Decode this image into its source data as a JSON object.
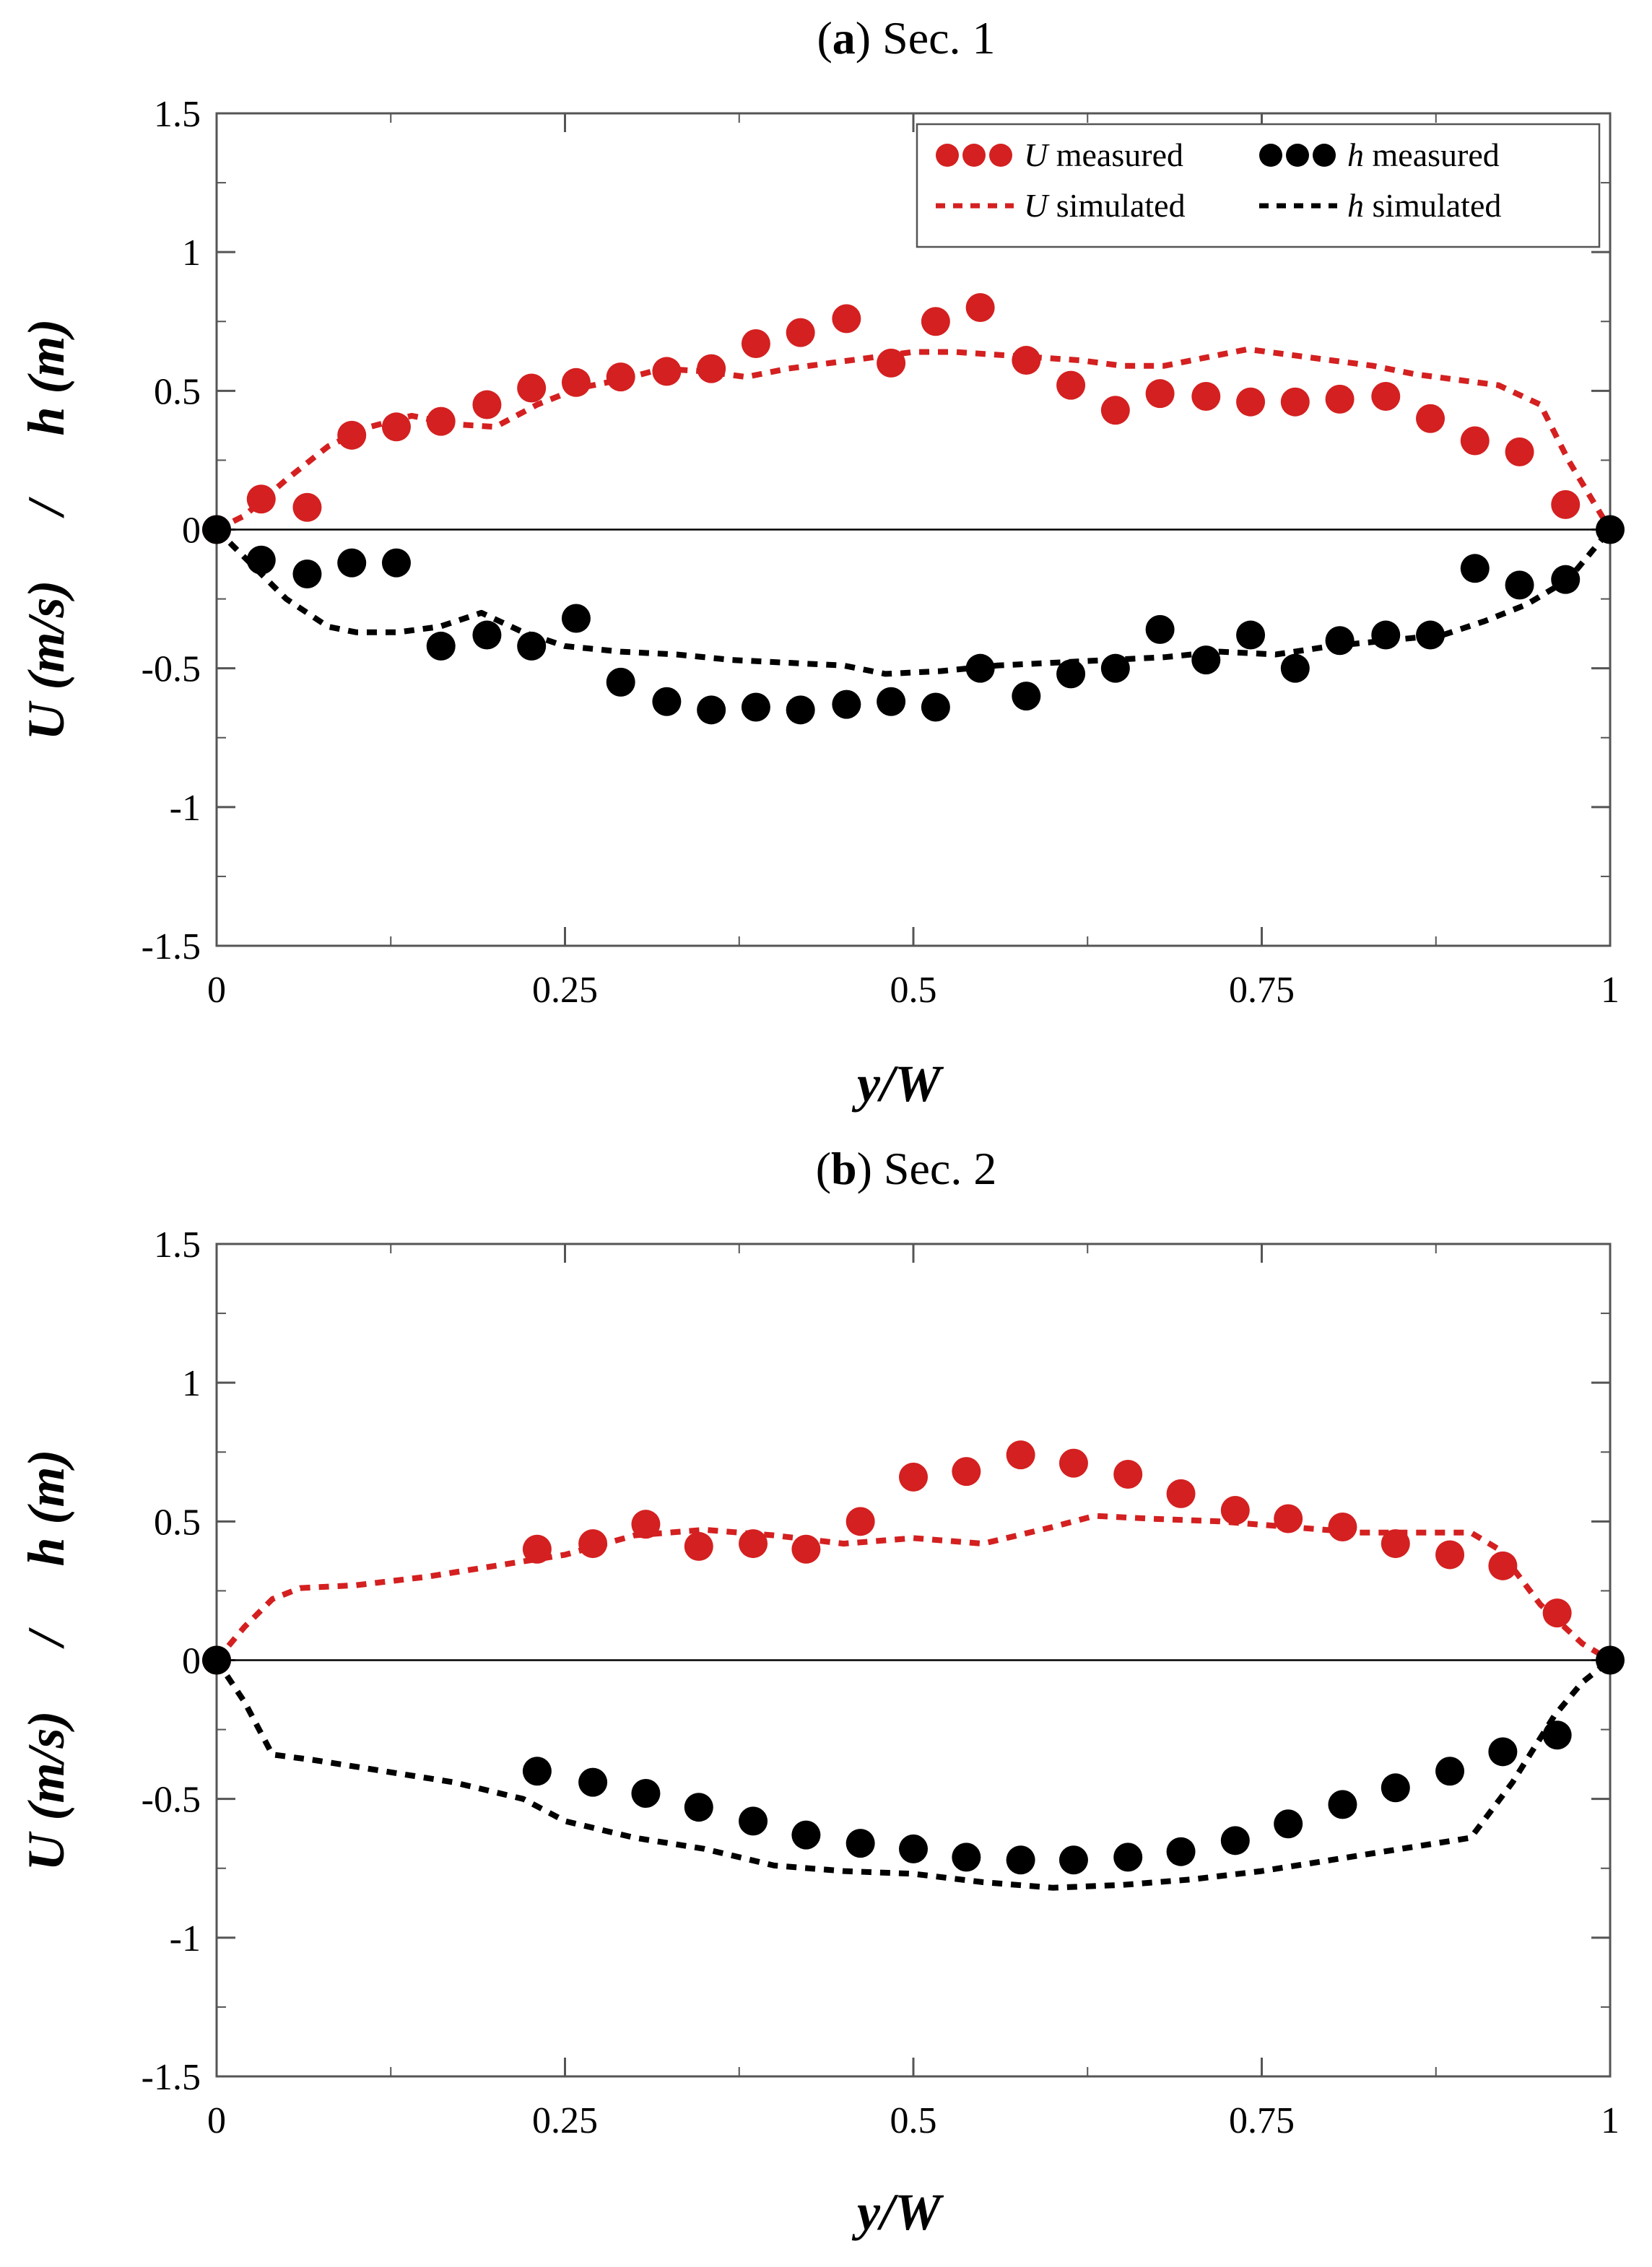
{
  "chart_data": [
    {
      "type": "scatter",
      "title_letter": "a",
      "title_paren_open": "(",
      "title_paren_close": ")",
      "title_rest": " Sec. 1",
      "xlabel": "y/W",
      "ylabel": "U (m/s)     /     h (m)",
      "xlim": [
        0,
        1
      ],
      "ylim": [
        -1.5,
        1.5
      ],
      "xticks": [
        0,
        0.25,
        0.5,
        0.75,
        1
      ],
      "xtick_labels": [
        "0",
        "0.25",
        "0.5",
        "0.75",
        "1"
      ],
      "yticks": [
        1.5,
        1,
        0.5,
        0,
        -0.5,
        -1,
        -1.5
      ],
      "ytick_labels": [
        "1.5",
        "1",
        "0.5",
        "0",
        "-0.5",
        "-1",
        "-1.5"
      ],
      "zero_line": true,
      "legend": {
        "position": "top-right",
        "entries": [
          {
            "key": "U_measured",
            "var": "U",
            "text": " measured",
            "kind": "marker",
            "color": "#d42020"
          },
          {
            "key": "h_measured",
            "var": "h",
            "text": " measured",
            "kind": "marker",
            "color": "#000000"
          },
          {
            "key": "U_simulated",
            "var": "U",
            "text": " simulated",
            "kind": "line",
            "color": "#d42020"
          },
          {
            "key": "h_simulated",
            "var": "h",
            "text": " simulated",
            "kind": "line",
            "color": "#000000"
          }
        ]
      },
      "series": [
        {
          "name": "U measured",
          "kind": "marker",
          "color": "#d42020",
          "x": [
            0,
            0.032,
            0.065,
            0.097,
            0.129,
            0.161,
            0.194,
            0.226,
            0.258,
            0.29,
            0.323,
            0.355,
            0.387,
            0.419,
            0.452,
            0.484,
            0.516,
            0.548,
            0.581,
            0.613,
            0.645,
            0.677,
            0.71,
            0.742,
            0.774,
            0.806,
            0.839,
            0.871,
            0.903,
            0.935,
            0.968
          ],
          "y": [
            0,
            0.11,
            0.08,
            0.34,
            0.37,
            0.39,
            0.45,
            0.51,
            0.53,
            0.55,
            0.57,
            0.58,
            0.67,
            0.71,
            0.76,
            0.6,
            0.75,
            0.8,
            0.61,
            0.52,
            0.43,
            0.49,
            0.48,
            0.46,
            0.46,
            0.47,
            0.48,
            0.4,
            0.32,
            0.28,
            0.09
          ]
        },
        {
          "name": "h measured",
          "kind": "marker",
          "color": "#000000",
          "x": [
            0,
            0.032,
            0.065,
            0.097,
            0.129,
            0.161,
            0.194,
            0.226,
            0.258,
            0.29,
            0.323,
            0.355,
            0.387,
            0.419,
            0.452,
            0.484,
            0.516,
            0.548,
            0.581,
            0.613,
            0.645,
            0.677,
            0.71,
            0.742,
            0.774,
            0.806,
            0.839,
            0.871,
            0.903,
            0.935,
            0.968,
            1.0
          ],
          "y": [
            0,
            -0.11,
            -0.16,
            -0.12,
            -0.12,
            -0.42,
            -0.38,
            -0.42,
            -0.32,
            -0.55,
            -0.62,
            -0.65,
            -0.64,
            -0.65,
            -0.63,
            -0.62,
            -0.64,
            -0.5,
            -0.6,
            -0.52,
            -0.5,
            -0.36,
            -0.47,
            -0.38,
            -0.5,
            -0.4,
            -0.38,
            -0.38,
            -0.14,
            -0.2,
            -0.18,
            0
          ]
        },
        {
          "name": "U simulated",
          "kind": "line",
          "color": "#d42020",
          "x": [
            0,
            0.02,
            0.05,
            0.08,
            0.11,
            0.14,
            0.17,
            0.2,
            0.23,
            0.26,
            0.29,
            0.32,
            0.35,
            0.38,
            0.41,
            0.44,
            0.47,
            0.5,
            0.53,
            0.56,
            0.59,
            0.62,
            0.65,
            0.68,
            0.71,
            0.74,
            0.77,
            0.8,
            0.83,
            0.86,
            0.89,
            0.92,
            0.95,
            0.97,
            1.0
          ],
          "y": [
            0,
            0.05,
            0.18,
            0.3,
            0.37,
            0.41,
            0.38,
            0.37,
            0.45,
            0.51,
            0.54,
            0.58,
            0.57,
            0.55,
            0.58,
            0.6,
            0.62,
            0.64,
            0.64,
            0.63,
            0.62,
            0.61,
            0.59,
            0.59,
            0.62,
            0.65,
            0.63,
            0.61,
            0.59,
            0.56,
            0.54,
            0.52,
            0.45,
            0.25,
            0
          ]
        },
        {
          "name": "h simulated",
          "kind": "line",
          "color": "#000000",
          "x": [
            0,
            0.02,
            0.05,
            0.08,
            0.1,
            0.13,
            0.16,
            0.19,
            0.22,
            0.25,
            0.29,
            0.33,
            0.37,
            0.41,
            0.45,
            0.48,
            0.52,
            0.56,
            0.6,
            0.64,
            0.68,
            0.72,
            0.76,
            0.8,
            0.84,
            0.88,
            0.91,
            0.94,
            0.97,
            1.0
          ],
          "y": [
            0,
            -0.1,
            -0.25,
            -0.35,
            -0.37,
            -0.37,
            -0.35,
            -0.3,
            -0.37,
            -0.42,
            -0.44,
            -0.45,
            -0.47,
            -0.48,
            -0.49,
            -0.52,
            -0.51,
            -0.49,
            -0.48,
            -0.47,
            -0.46,
            -0.44,
            -0.45,
            -0.42,
            -0.4,
            -0.38,
            -0.33,
            -0.27,
            -0.18,
            0
          ]
        }
      ]
    },
    {
      "type": "scatter",
      "title_letter": "b",
      "title_paren_open": "(",
      "title_paren_close": ")",
      "title_rest": " Sec. 2",
      "xlabel": "y/W",
      "ylabel": "U (m/s)     /     h (m)",
      "xlim": [
        0,
        1
      ],
      "ylim": [
        -1.5,
        1.5
      ],
      "xticks": [
        0,
        0.25,
        0.5,
        0.75,
        1
      ],
      "xtick_labels": [
        "0",
        "0.25",
        "0.5",
        "0.75",
        "1"
      ],
      "yticks": [
        1.5,
        1,
        0.5,
        0,
        -0.5,
        -1,
        -1.5
      ],
      "ytick_labels": [
        "1.5",
        "1",
        "0.5",
        "0",
        "-0.5",
        "-1",
        "-1.5"
      ],
      "zero_line": true,
      "series": [
        {
          "name": "U measured",
          "kind": "marker",
          "color": "#d42020",
          "x": [
            0,
            0.23,
            0.27,
            0.308,
            0.346,
            0.385,
            0.423,
            0.462,
            0.5,
            0.538,
            0.577,
            0.615,
            0.654,
            0.692,
            0.731,
            0.769,
            0.808,
            0.846,
            0.885,
            0.923,
            0.962
          ],
          "y": [
            0,
            0.4,
            0.42,
            0.49,
            0.41,
            0.42,
            0.4,
            0.5,
            0.66,
            0.68,
            0.74,
            0.71,
            0.67,
            0.6,
            0.54,
            0.51,
            0.48,
            0.42,
            0.38,
            0.34,
            0.17
          ]
        },
        {
          "name": "h measured",
          "kind": "marker",
          "color": "#000000",
          "x": [
            0,
            0.23,
            0.27,
            0.308,
            0.346,
            0.385,
            0.423,
            0.462,
            0.5,
            0.538,
            0.577,
            0.615,
            0.654,
            0.692,
            0.731,
            0.769,
            0.808,
            0.846,
            0.885,
            0.923,
            0.962,
            1.0
          ],
          "y": [
            0,
            -0.4,
            -0.44,
            -0.48,
            -0.53,
            -0.58,
            -0.63,
            -0.66,
            -0.68,
            -0.71,
            -0.72,
            -0.72,
            -0.71,
            -0.69,
            -0.65,
            -0.59,
            -0.52,
            -0.46,
            -0.4,
            -0.33,
            -0.27,
            0
          ]
        },
        {
          "name": "U simulated",
          "kind": "line",
          "color": "#d42020",
          "x": [
            0,
            0.02,
            0.04,
            0.06,
            0.1,
            0.15,
            0.2,
            0.25,
            0.3,
            0.35,
            0.4,
            0.45,
            0.5,
            0.55,
            0.6,
            0.63,
            0.67,
            0.72,
            0.77,
            0.82,
            0.86,
            0.9,
            0.92,
            0.95,
            0.98,
            1.0
          ],
          "y": [
            0,
            0.12,
            0.22,
            0.26,
            0.27,
            0.3,
            0.34,
            0.38,
            0.45,
            0.47,
            0.45,
            0.42,
            0.44,
            0.42,
            0.48,
            0.52,
            0.51,
            0.5,
            0.48,
            0.46,
            0.46,
            0.46,
            0.4,
            0.2,
            0.06,
            0
          ]
        },
        {
          "name": "h simulated",
          "kind": "line",
          "color": "#000000",
          "x": [
            0,
            0.02,
            0.04,
            0.07,
            0.12,
            0.17,
            0.22,
            0.25,
            0.3,
            0.35,
            0.4,
            0.45,
            0.5,
            0.55,
            0.6,
            0.65,
            0.7,
            0.75,
            0.8,
            0.85,
            0.9,
            0.93,
            0.96,
            0.98,
            1.0
          ],
          "y": [
            0,
            -0.15,
            -0.34,
            -0.36,
            -0.4,
            -0.44,
            -0.5,
            -0.58,
            -0.64,
            -0.68,
            -0.74,
            -0.76,
            -0.77,
            -0.8,
            -0.82,
            -0.81,
            -0.79,
            -0.76,
            -0.72,
            -0.68,
            -0.64,
            -0.44,
            -0.2,
            -0.08,
            0
          ]
        }
      ]
    }
  ]
}
